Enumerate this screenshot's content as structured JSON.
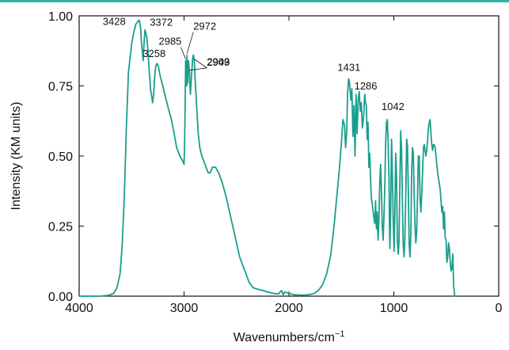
{
  "chart_data": {
    "type": "line",
    "xlabel": "Wavenumbers/cm",
    "xlabel_superscript": "−1",
    "ylabel": "Intensity (KM units)",
    "xlim": [
      4000,
      0
    ],
    "ylim": [
      0.0,
      1.0
    ],
    "x_reversed": true,
    "x_ticks": [
      {
        "value": 4000,
        "label": "4000"
      },
      {
        "value": 3000,
        "label": "3000"
      },
      {
        "value": 2000,
        "label": "2000"
      },
      {
        "value": 1000,
        "label": "1000"
      },
      {
        "value": 0,
        "label": "0"
      }
    ],
    "y_ticks": [
      {
        "value": 0.0,
        "label": "0.00"
      },
      {
        "value": 0.25,
        "label": "0.25"
      },
      {
        "value": 0.5,
        "label": "0.50"
      },
      {
        "value": 0.75,
        "label": "0.75"
      },
      {
        "value": 1.0,
        "label": "1.00"
      }
    ],
    "grid": false,
    "line_color": "#1a9e8c",
    "accent_color": "#2fb3a6",
    "series": [
      {
        "x": [
          4000,
          3800,
          3720,
          3670,
          3640,
          3610,
          3590,
          3570,
          3550,
          3530,
          3500,
          3480,
          3460,
          3440,
          3428,
          3415,
          3405,
          3395,
          3390,
          3385,
          3378,
          3372,
          3365,
          3355,
          3345,
          3335,
          3320,
          3300,
          3290,
          3280,
          3270,
          3258,
          3245,
          3230,
          3210,
          3190,
          3170,
          3150,
          3120,
          3100,
          3070,
          3040,
          3010,
          3000,
          2995,
          2990,
          2985,
          2980,
          2975,
          2972,
          2965,
          2958,
          2949,
          2940,
          2930,
          2918,
          2910,
          2903,
          2895,
          2880,
          2865,
          2850,
          2830,
          2810,
          2790,
          2770,
          2750,
          2730,
          2700,
          2670,
          2640,
          2610,
          2590,
          2560,
          2530,
          2500,
          2470,
          2440,
          2410,
          2380,
          2340,
          2300,
          2250,
          2200,
          2150,
          2100,
          2070,
          2055,
          2040,
          2000,
          1950,
          1900,
          1850,
          1800,
          1760,
          1720,
          1680,
          1640,
          1600,
          1570,
          1545,
          1520,
          1500,
          1485,
          1470,
          1460,
          1450,
          1440,
          1431,
          1425,
          1418,
          1410,
          1400,
          1390,
          1380,
          1370,
          1360,
          1350,
          1340,
          1330,
          1320,
          1310,
          1300,
          1286,
          1278,
          1270,
          1262,
          1254,
          1246,
          1238,
          1230,
          1222,
          1214,
          1206,
          1198,
          1190,
          1182,
          1174,
          1166,
          1158,
          1150,
          1142,
          1134,
          1126,
          1118,
          1110,
          1102,
          1094,
          1086,
          1078,
          1070,
          1062,
          1054,
          1046,
          1042,
          1038,
          1030,
          1022,
          1014,
          1006,
          998,
          990,
          982,
          974,
          966,
          958,
          950,
          942,
          934,
          926,
          918,
          910,
          902,
          894,
          886,
          878,
          870,
          862,
          854,
          846,
          838,
          830,
          822,
          814,
          806,
          798,
          790,
          782,
          774,
          766,
          758,
          750,
          742,
          734,
          726,
          718,
          710,
          702,
          694,
          686,
          678,
          670,
          662,
          654,
          646,
          638,
          630,
          622,
          614,
          606,
          598,
          590,
          582,
          574,
          566,
          558,
          550,
          542,
          534,
          526,
          518,
          510,
          502,
          494,
          486,
          478,
          470,
          462,
          454,
          446,
          438,
          430,
          420,
          410
        ],
        "y": [
          0.0,
          0.0,
          0.003,
          0.01,
          0.03,
          0.08,
          0.18,
          0.35,
          0.6,
          0.8,
          0.9,
          0.94,
          0.97,
          0.98,
          0.985,
          0.96,
          0.9,
          0.86,
          0.84,
          0.88,
          0.92,
          0.95,
          0.94,
          0.92,
          0.88,
          0.82,
          0.74,
          0.69,
          0.72,
          0.78,
          0.82,
          0.83,
          0.82,
          0.79,
          0.76,
          0.73,
          0.7,
          0.67,
          0.63,
          0.59,
          0.53,
          0.5,
          0.48,
          0.47,
          0.54,
          0.66,
          0.84,
          0.81,
          0.75,
          0.86,
          0.76,
          0.84,
          0.8,
          0.72,
          0.78,
          0.85,
          0.86,
          0.84,
          0.78,
          0.68,
          0.58,
          0.53,
          0.5,
          0.48,
          0.46,
          0.44,
          0.44,
          0.46,
          0.46,
          0.44,
          0.41,
          0.37,
          0.34,
          0.29,
          0.24,
          0.19,
          0.14,
          0.11,
          0.08,
          0.05,
          0.03,
          0.025,
          0.02,
          0.015,
          0.01,
          0.008,
          0.02,
          0.005,
          0.015,
          0.01,
          0.005,
          0.004,
          0.004,
          0.006,
          0.01,
          0.02,
          0.04,
          0.08,
          0.15,
          0.25,
          0.35,
          0.45,
          0.55,
          0.63,
          0.61,
          0.53,
          0.58,
          0.73,
          0.775,
          0.77,
          0.74,
          0.7,
          0.74,
          0.57,
          0.68,
          0.5,
          0.72,
          0.58,
          0.7,
          0.73,
          0.66,
          0.69,
          0.6,
          0.65,
          0.72,
          0.69,
          0.68,
          0.56,
          0.62,
          0.46,
          0.51,
          0.42,
          0.35,
          0.33,
          0.3,
          0.28,
          0.26,
          0.34,
          0.24,
          0.3,
          0.2,
          0.28,
          0.4,
          0.47,
          0.37,
          0.25,
          0.2,
          0.28,
          0.39,
          0.55,
          0.62,
          0.63,
          0.55,
          0.42,
          0.28,
          0.17,
          0.3,
          0.56,
          0.45,
          0.28,
          0.16,
          0.3,
          0.51,
          0.43,
          0.2,
          0.15,
          0.2,
          0.41,
          0.59,
          0.52,
          0.33,
          0.18,
          0.14,
          0.21,
          0.36,
          0.56,
          0.54,
          0.38,
          0.19,
          0.14,
          0.22,
          0.44,
          0.53,
          0.51,
          0.36,
          0.25,
          0.19,
          0.23,
          0.35,
          0.5,
          0.5,
          0.35,
          0.3,
          0.36,
          0.44,
          0.53,
          0.54,
          0.52,
          0.5,
          0.52,
          0.56,
          0.6,
          0.62,
          0.63,
          0.58,
          0.54,
          0.52,
          0.54,
          0.54,
          0.53,
          0.5,
          0.47,
          0.44,
          0.42,
          0.4,
          0.38,
          0.34,
          0.3,
          0.32,
          0.24,
          0.3,
          0.21,
          0.2,
          0.12,
          0.14,
          0.19,
          0.17,
          0.12,
          0.09,
          0.1,
          0.15,
          0.04,
          0.0,
          0.0
        ]
      }
    ],
    "annotations": [
      {
        "text": "3428",
        "x": 3428,
        "y": 0.985
      },
      {
        "text": "3372",
        "x": 3372,
        "y": 0.95
      },
      {
        "text": "3258",
        "x": 3258,
        "y": 0.83
      },
      {
        "text": "2985",
        "x": 2985,
        "y": 0.84
      },
      {
        "text": "2972",
        "x": 2972,
        "y": 0.86
      },
      {
        "text": "2949",
        "x": 2949,
        "y": 0.8
      },
      {
        "text": "2903",
        "x": 2903,
        "y": 0.84
      },
      {
        "text": "1431",
        "x": 1431,
        "y": 0.775
      },
      {
        "text": "1286",
        "x": 1286,
        "y": 0.72
      },
      {
        "text": "1042",
        "x": 1042,
        "y": 0.63
      }
    ]
  }
}
